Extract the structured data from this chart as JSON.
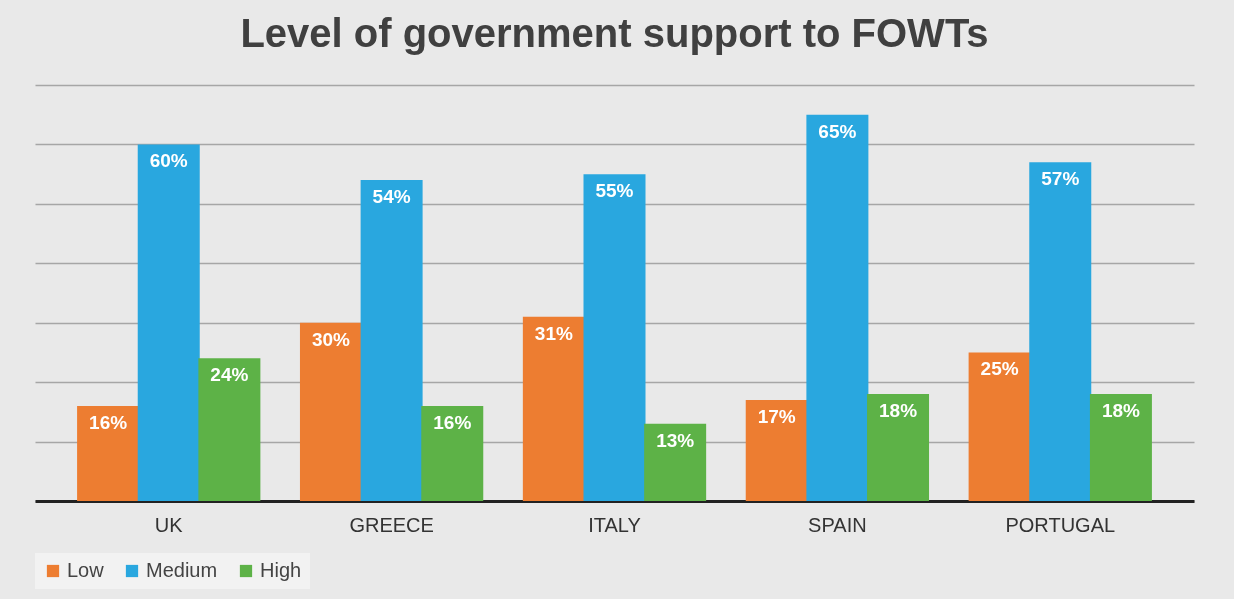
{
  "chart_data": {
    "type": "bar",
    "title": "Level of government support to FOWTs",
    "categories": [
      "UK",
      "GREECE",
      "ITALY",
      "SPAIN",
      "PORTUGAL"
    ],
    "series": [
      {
        "name": "Low",
        "color": "#ed7d31",
        "values": [
          16,
          30,
          31,
          17,
          25
        ],
        "value_labels": [
          "16%",
          "30%",
          "31%",
          "17%",
          "25%"
        ]
      },
      {
        "name": "Medium",
        "color": "#29a7df",
        "values": [
          60,
          54,
          55,
          65,
          57
        ],
        "value_labels": [
          "60%",
          "54%",
          "55%",
          "65%",
          "57%"
        ]
      },
      {
        "name": "High",
        "color": "#5db247",
        "values": [
          24,
          16,
          13,
          18,
          18
        ],
        "value_labels": [
          "24%",
          "16%",
          "13%",
          "18%",
          "18%"
        ]
      }
    ],
    "ylim": [
      0,
      70
    ],
    "yticks": [
      {
        "value": 0,
        "label": null
      },
      {
        "value": 10,
        "label": null
      },
      {
        "value": 20,
        "label": null
      },
      {
        "value": 30,
        "label": null
      },
      {
        "value": 40,
        "label": null
      },
      {
        "value": 50,
        "label": null
      },
      {
        "value": 60,
        "label": null
      },
      {
        "value": 70,
        "label": null
      }
    ],
    "tick_labels": "x",
    "grid": "y",
    "legend": "bottom"
  }
}
